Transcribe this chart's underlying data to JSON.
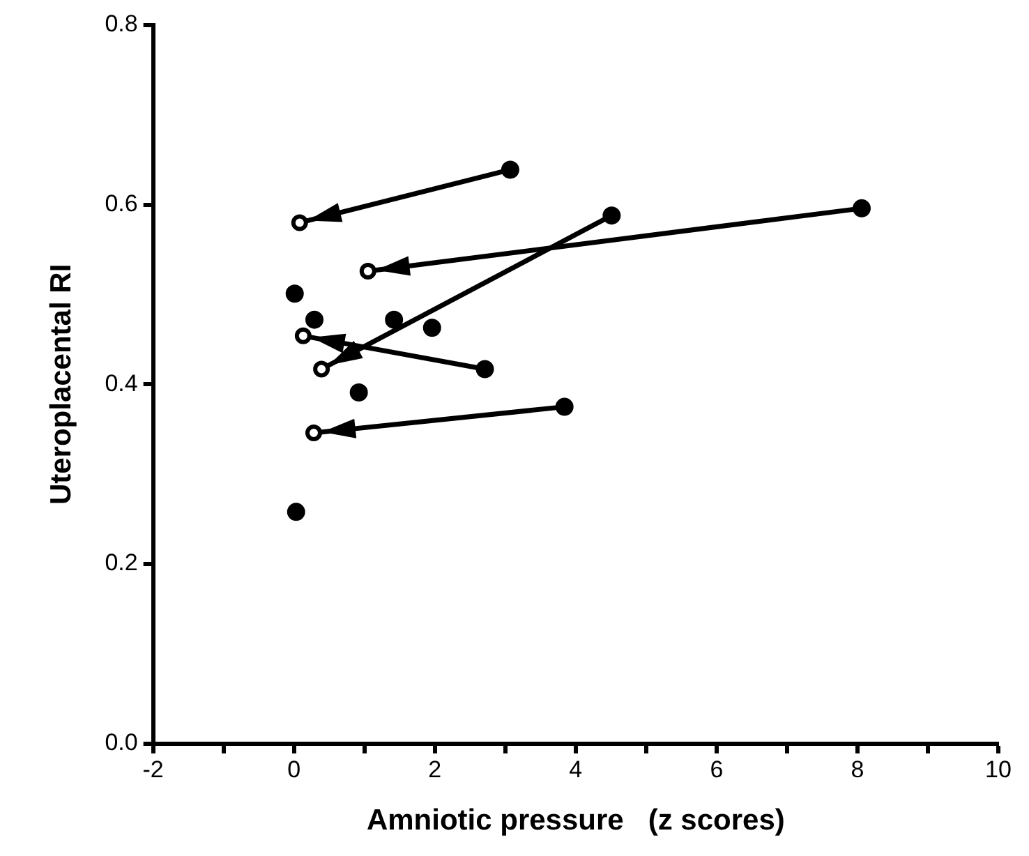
{
  "chart_data": {
    "type": "scatter",
    "xlabel": "Amniotic pressure   (z scores)",
    "ylabel": "Uteroplacental RI",
    "xlim": [
      -2,
      10
    ],
    "ylim": [
      0,
      0.8
    ],
    "xticks": [
      -2,
      {
        "value": -1,
        "label": null
      },
      0,
      {
        "value": 1,
        "label": null
      },
      2,
      {
        "value": 3,
        "label": null
      },
      4,
      {
        "value": 5,
        "label": null
      },
      6,
      {
        "value": 7,
        "label": null
      },
      8,
      {
        "value": 9,
        "label": null
      },
      10
    ],
    "yticks": [
      {
        "value": 0,
        "label": "0.0"
      },
      0.2,
      0.4,
      0.6,
      0.8
    ],
    "grid": false,
    "legend": false,
    "marker": "circle",
    "series": [
      {
        "color": "#000000",
        "x": [
          3.07,
          8.06,
          4.51,
          2.71,
          3.84,
          0.01,
          0.29,
          1.42,
          1.96,
          0.92,
          0.03
        ],
        "values": [
          0.639,
          0.596,
          0.588,
          0.417,
          0.375,
          0.501,
          0.472,
          0.472,
          0.463,
          0.391,
          0.258
        ]
      },
      {
        "color": "#000000",
        "x": [
          0.08,
          1.05,
          0.39,
          0.13,
          0.28
        ],
        "values": [
          0.58,
          0.526,
          0.417,
          0.454,
          0.346
        ]
      },
      {
        "type": "line",
        "color": "#000000",
        "marker": "none",
        "x": [
          3.07,
          0.08
        ],
        "values": [
          0.639,
          0.58
        ]
      },
      {
        "type": "line",
        "color": "#000000",
        "marker": "none",
        "x": [
          8.06,
          1.05
        ],
        "values": [
          0.596,
          0.526
        ]
      },
      {
        "type": "line",
        "color": "#000000",
        "marker": "none",
        "x": [
          4.51,
          0.39
        ],
        "values": [
          0.588,
          0.417
        ]
      },
      {
        "type": "line",
        "color": "#000000",
        "marker": "none",
        "x": [
          2.71,
          0.13
        ],
        "values": [
          0.417,
          0.454
        ]
      },
      {
        "type": "line",
        "color": "#000000",
        "marker": "none",
        "x": [
          3.84,
          0.28
        ],
        "values": [
          0.375,
          0.346
        ]
      }
    ]
  }
}
